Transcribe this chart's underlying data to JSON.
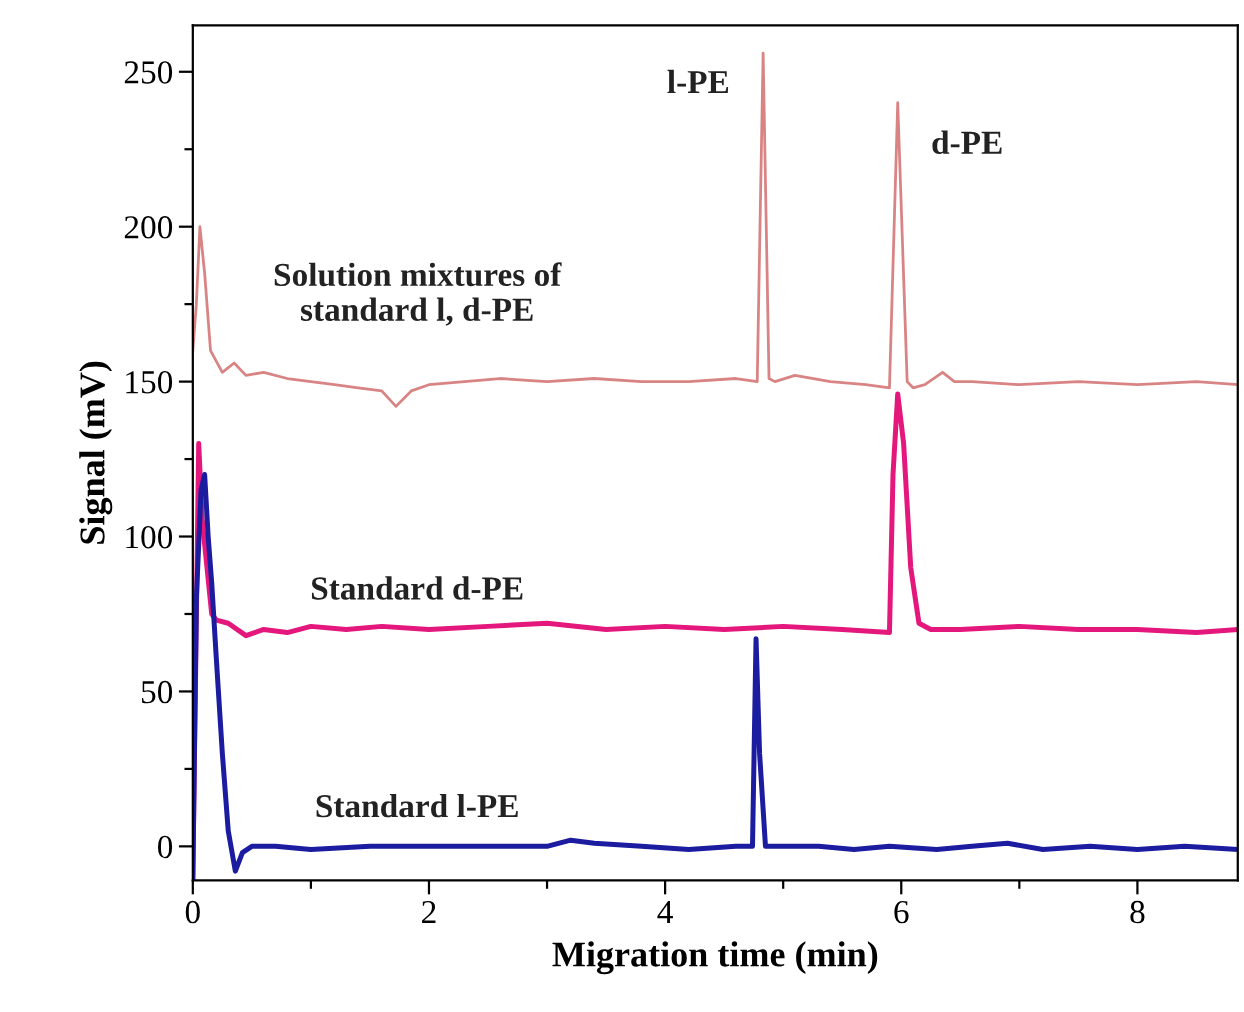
{
  "chart_data": {
    "type": "line",
    "xlabel": "Migration time (min)",
    "ylabel": "Signal (mV)",
    "xlim": [
      0,
      8.85
    ],
    "xticks": [
      0,
      {
        "value": 1,
        "label": null
      },
      2,
      {
        "value": 3,
        "label": null
      },
      4,
      {
        "value": 5,
        "label": null
      },
      6,
      {
        "value": 7,
        "label": null
      },
      8
    ],
    "ylim": [
      -11,
      265
    ],
    "yticks": [
      0,
      {
        "value": 25,
        "label": null
      },
      50,
      {
        "value": 75,
        "label": null
      },
      100,
      {
        "value": 125,
        "label": null
      },
      150,
      {
        "value": 175,
        "label": null
      },
      200,
      {
        "value": 225,
        "label": null
      },
      250
    ],
    "grid": false,
    "legend": false,
    "marker": "none",
    "line_style": "solid",
    "series": [
      {
        "name": "Solution mixtures of\nstandard l, d-PE",
        "color": "#d98484",
        "x": [
          0,
          0.03,
          0.06,
          0.1,
          0.15,
          0.25,
          0.35,
          0.45,
          0.6,
          0.8,
          1.0,
          1.2,
          1.4,
          1.6,
          1.72,
          1.85,
          2.0,
          2.3,
          2.6,
          3.0,
          3.4,
          3.8,
          4.2,
          4.6,
          4.78,
          4.83,
          4.88,
          4.93,
          5.1,
          5.4,
          5.7,
          5.9,
          5.97,
          6.05,
          6.1,
          6.2,
          6.35,
          6.45,
          6.6,
          7.0,
          7.5,
          8.0,
          8.5,
          8.85
        ],
        "values": [
          160,
          175,
          200,
          185,
          160,
          153,
          156,
          152,
          153,
          151,
          150,
          149,
          148,
          147,
          142,
          147,
          149,
          150,
          151,
          150,
          151,
          150,
          150,
          151,
          150,
          256,
          151,
          150,
          152,
          150,
          149,
          148,
          240,
          150,
          148,
          149,
          153,
          150,
          150,
          149,
          150,
          149,
          150,
          149
        ]
      },
      {
        "name": "Standard d-PE",
        "color": "#e4177c",
        "x": [
          0,
          0.05,
          0.08,
          0.12,
          0.16,
          0.2,
          0.3,
          0.45,
          0.6,
          0.8,
          1.0,
          1.3,
          1.6,
          2.0,
          2.5,
          3.0,
          3.5,
          4.0,
          4.5,
          5.0,
          5.5,
          5.9,
          5.93,
          5.97,
          6.02,
          6.08,
          6.15,
          6.25,
          6.5,
          7.0,
          7.5,
          8.0,
          8.5,
          8.85
        ],
        "values": [
          -10,
          130,
          105,
          90,
          75,
          73,
          72,
          68,
          70,
          69,
          71,
          70,
          71,
          70,
          71,
          72,
          70,
          71,
          70,
          71,
          70,
          69,
          120,
          146,
          130,
          90,
          72,
          70,
          70,
          71,
          70,
          70,
          69,
          70
        ]
      },
      {
        "name": "Standard l-PE",
        "color": "#1c1ca0",
        "x": [
          0,
          0.03,
          0.07,
          0.1,
          0.13,
          0.16,
          0.2,
          0.25,
          0.3,
          0.36,
          0.42,
          0.5,
          0.7,
          1.0,
          1.5,
          2.0,
          2.5,
          3.0,
          3.2,
          3.4,
          3.8,
          4.2,
          4.6,
          4.74,
          4.77,
          4.8,
          4.85,
          5.0,
          5.3,
          5.6,
          5.9,
          6.3,
          6.6,
          6.9,
          7.2,
          7.6,
          8.0,
          8.4,
          8.85
        ],
        "values": [
          -10,
          80,
          115,
          120,
          100,
          85,
          60,
          30,
          5,
          -8,
          -2,
          0,
          0,
          -1,
          0,
          0,
          0,
          0,
          2,
          1,
          0,
          -1,
          0,
          0,
          67,
          30,
          0,
          0,
          0,
          -1,
          0,
          -1,
          0,
          1,
          -1,
          0,
          -1,
          0,
          -1
        ]
      }
    ],
    "annotations": [
      {
        "text": "l-PE",
        "x": 4.83,
        "y": 256
      },
      {
        "text": "d-PE",
        "x": 5.97,
        "y": 240
      }
    ]
  }
}
